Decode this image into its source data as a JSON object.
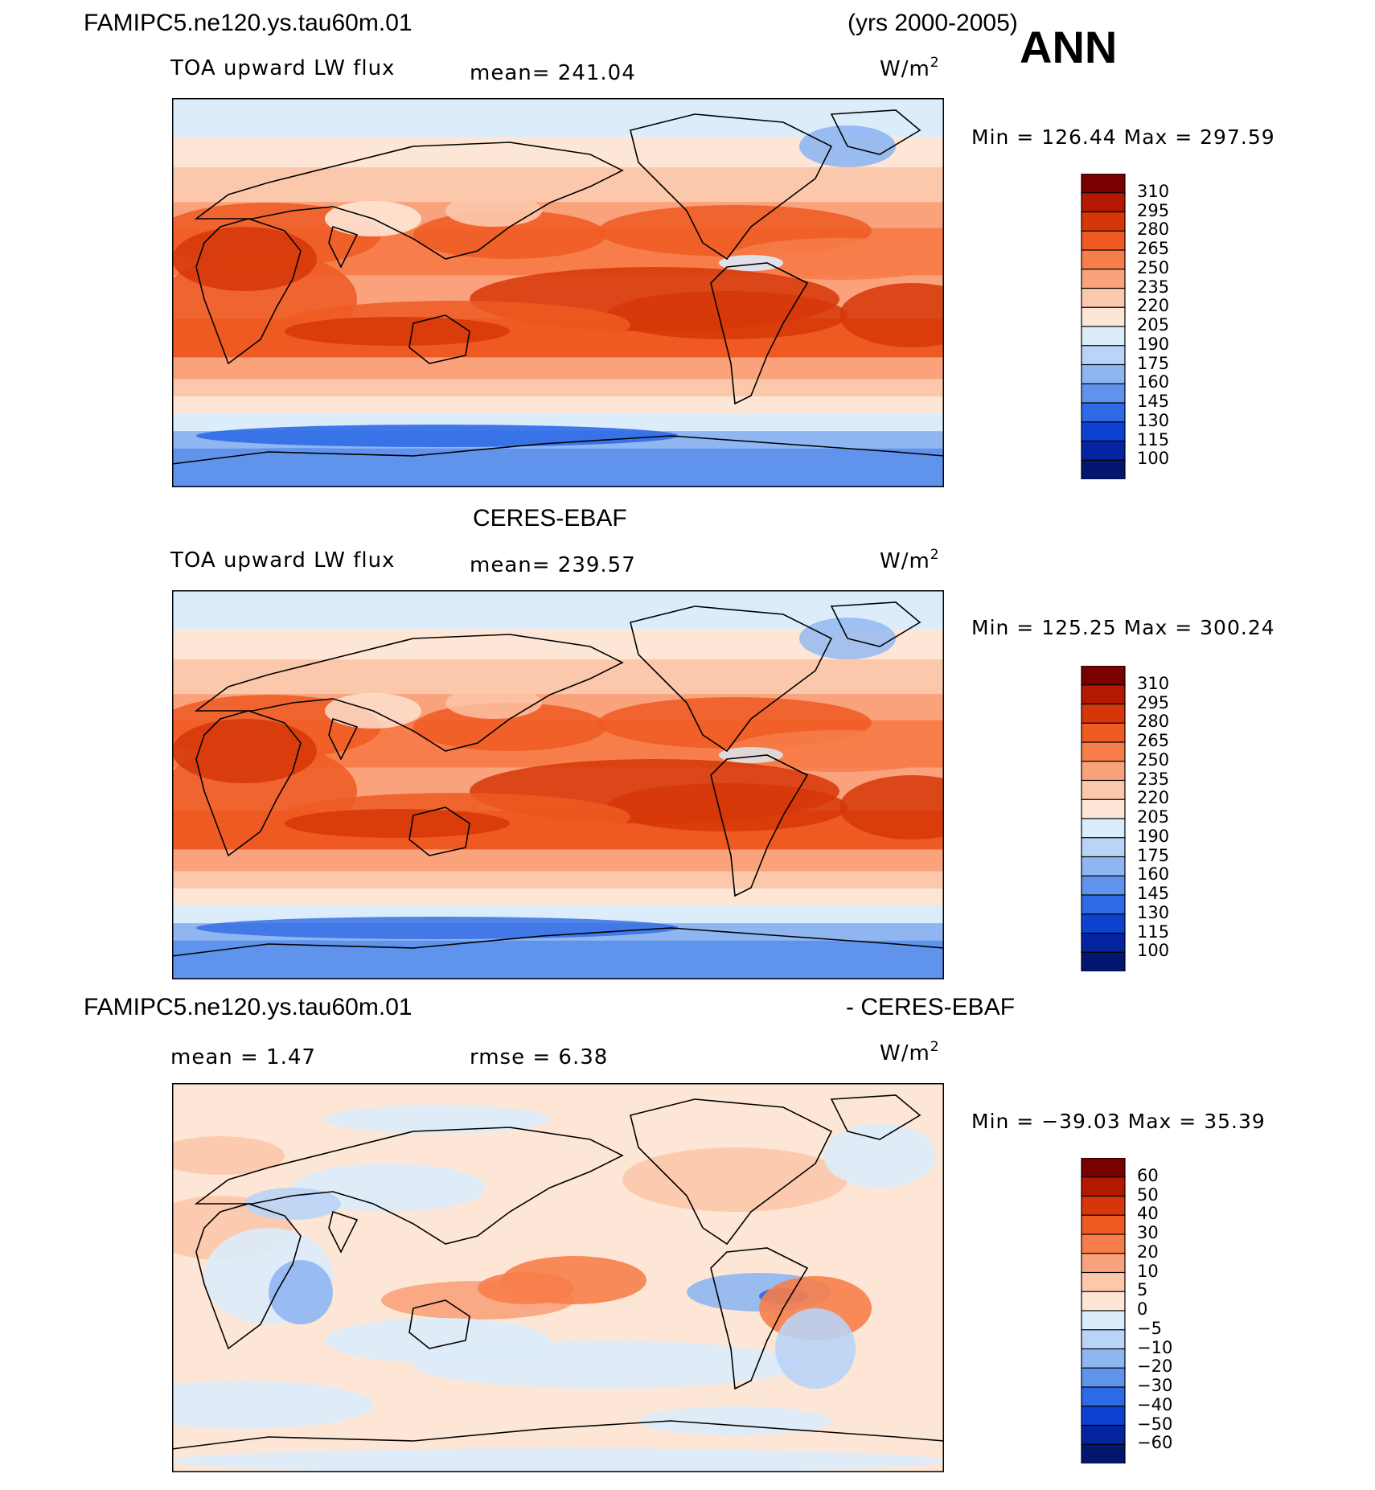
{
  "header": {
    "case_name": "FAMIPC5.ne120.ys.tau60m.01",
    "years": "(yrs 2000-2005)",
    "season": "ANN"
  },
  "panels": [
    {
      "id": "model",
      "title": "",
      "variable": "TOA upward LW flux",
      "stat": "mean=  241.04",
      "unit": "W/m",
      "unit_exp": "2",
      "minmax": "Min  =  126.44  Max  =  297.59",
      "colorbar": [
        "310",
        "295",
        "280",
        "265",
        "250",
        "235",
        "220",
        "205",
        "190",
        "175",
        "160",
        "145",
        "130",
        "115",
        "100"
      ]
    },
    {
      "id": "obs",
      "title": "CERES-EBAF",
      "variable": "TOA upward LW flux",
      "stat": "mean=  239.57",
      "unit": "W/m",
      "unit_exp": "2",
      "minmax": "Min  =  125.25  Max  =  300.24",
      "colorbar": [
        "310",
        "295",
        "280",
        "265",
        "250",
        "235",
        "220",
        "205",
        "190",
        "175",
        "160",
        "145",
        "130",
        "115",
        "100"
      ]
    },
    {
      "id": "diff",
      "title_left": "FAMIPC5.ne120.ys.tau60m.01",
      "title_right": "- CERES-EBAF",
      "mean": "mean  =     1.47",
      "rmse": "rmse  =     6.38",
      "unit": "W/m",
      "unit_exp": "2",
      "minmax": "Min  =  −39.03  Max  =    35.39",
      "colorbar": [
        "60",
        "50",
        "40",
        "30",
        "20",
        "10",
        "5",
        "0",
        "−5",
        "−10",
        "−20",
        "−30",
        "−40",
        "−50",
        "−60"
      ]
    }
  ],
  "colors": {
    "abs_scale": [
      "#7a0000",
      "#b31800",
      "#d63708",
      "#ef5a22",
      "#f77e4a",
      "#f9a27c",
      "#fcc8ab",
      "#fde6d5",
      "#dbecfb",
      "#b9d4f6",
      "#8fb6f1",
      "#5f93ec",
      "#2e6ae5",
      "#0c42cf",
      "#0623a0",
      "#03166f"
    ],
    "diff_scale": [
      "#7a0000",
      "#b31800",
      "#d63708",
      "#ef5a22",
      "#f77e4a",
      "#f9a27c",
      "#fcc8ab",
      "#fde6d5",
      "#dbecfb",
      "#b9d4f6",
      "#8fb6f1",
      "#5f93ec",
      "#2e6ae5",
      "#0c42cf",
      "#0623a0",
      "#03166f"
    ],
    "coast": "#000000"
  }
}
